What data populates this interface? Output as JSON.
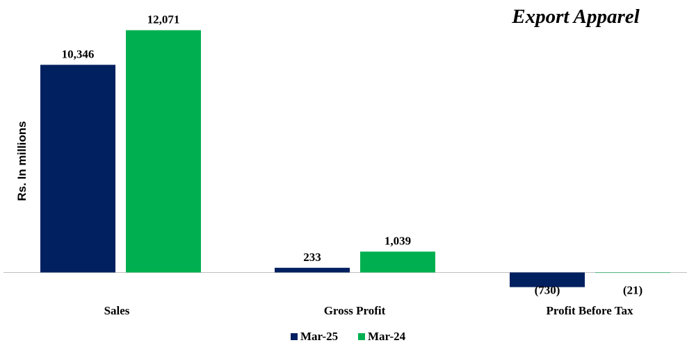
{
  "chart_data": {
    "type": "bar",
    "title": "Export Apparel",
    "xlabel": "",
    "ylabel": "Rs. In millions",
    "categories": [
      "Sales",
      "Gross Profit",
      "Profit Before Tax"
    ],
    "series": [
      {
        "name": "Mar-25",
        "color": "#002060",
        "values": [
          10346,
          233,
          -730
        ],
        "labels": [
          "10,346",
          "233",
          "(730)"
        ]
      },
      {
        "name": "Mar-24",
        "color": "#00B050",
        "values": [
          12071,
          1039,
          -21
        ],
        "labels": [
          "12,071",
          "1,039",
          "(21)"
        ]
      }
    ],
    "ylim": [
      -1000,
      12500
    ],
    "grid": false,
    "legend": "bottom-center"
  }
}
